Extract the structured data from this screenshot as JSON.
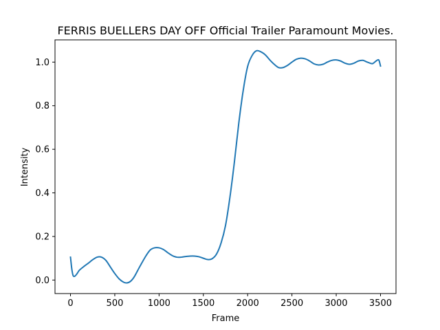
{
  "chart_data": {
    "type": "line",
    "title": "FERRIS BUELLERS DAY OFF  Official Trailer  Paramount Movies.",
    "xlabel": "Frame",
    "ylabel": "Intensity",
    "xlim": [
      -175,
      3675
    ],
    "ylim": [
      -0.062,
      1.102
    ],
    "xticks": [
      0,
      500,
      1000,
      1500,
      2000,
      2500,
      3000,
      3500
    ],
    "xtick_labels": [
      "0",
      "500",
      "1000",
      "1500",
      "2000",
      "2500",
      "3000",
      "3500"
    ],
    "yticks": [
      0.0,
      0.2,
      0.4,
      0.6,
      0.8,
      1.0
    ],
    "ytick_labels": [
      "0.0",
      "0.2",
      "0.4",
      "0.6",
      "0.8",
      "1.0"
    ],
    "grid": false,
    "series": [
      {
        "color": "#1f77b4",
        "x": [
          0,
          15,
          30,
          50,
          75,
          100,
          150,
          200,
          250,
          300,
          350,
          400,
          450,
          500,
          550,
          600,
          640,
          680,
          720,
          780,
          850,
          900,
          950,
          1000,
          1050,
          1100,
          1150,
          1200,
          1250,
          1300,
          1350,
          1400,
          1450,
          1500,
          1550,
          1600,
          1650,
          1700,
          1750,
          1800,
          1850,
          1900,
          1950,
          2000,
          2050,
          2100,
          2150,
          2200,
          2250,
          2300,
          2350,
          2400,
          2450,
          2500,
          2550,
          2600,
          2650,
          2700,
          2750,
          2800,
          2850,
          2900,
          2950,
          3000,
          3050,
          3100,
          3150,
          3200,
          3250,
          3300,
          3350,
          3400,
          3420,
          3450,
          3480,
          3500
        ],
        "y": [
          0.105,
          0.05,
          0.02,
          0.018,
          0.03,
          0.045,
          0.062,
          0.077,
          0.093,
          0.105,
          0.105,
          0.09,
          0.06,
          0.03,
          0.005,
          -0.01,
          -0.013,
          -0.005,
          0.015,
          0.06,
          0.11,
          0.138,
          0.148,
          0.148,
          0.14,
          0.125,
          0.112,
          0.105,
          0.105,
          0.108,
          0.11,
          0.11,
          0.107,
          0.1,
          0.094,
          0.098,
          0.12,
          0.17,
          0.25,
          0.38,
          0.54,
          0.72,
          0.87,
          0.98,
          1.03,
          1.052,
          1.047,
          1.033,
          1.01,
          0.99,
          0.975,
          0.975,
          0.985,
          1.0,
          1.013,
          1.018,
          1.015,
          1.005,
          0.992,
          0.987,
          0.99,
          1.0,
          1.008,
          1.01,
          1.005,
          0.995,
          0.99,
          0.995,
          1.005,
          1.008,
          1.0,
          0.993,
          0.995,
          1.005,
          1.01,
          0.982
        ]
      }
    ]
  }
}
